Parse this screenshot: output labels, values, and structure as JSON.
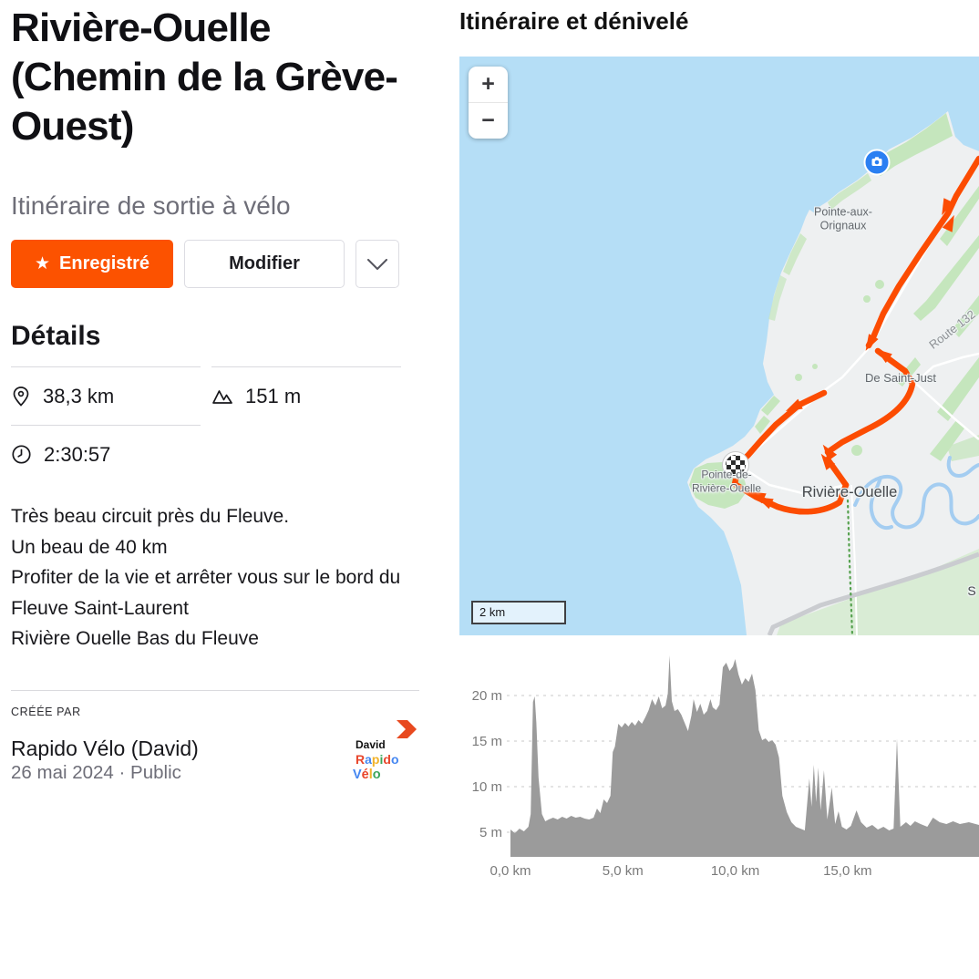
{
  "left": {
    "title": "Rivière-Ouelle (Chemin de la Grève-Ouest)",
    "subtitle": "Itinéraire de sortie à vélo",
    "buttons": {
      "saved": "Enregistré",
      "star": "★",
      "edit": "Modifier"
    },
    "details": {
      "heading": "Détails",
      "distance": "38,3 km",
      "elevation_gain": "151 m",
      "time": "2:30:57"
    },
    "description": [
      "Très beau circuit près du Fleuve.",
      "Un beau de 40 km",
      "Profiter de la vie et arrêter vous sur le bord du Fleuve Saint-Laurent",
      "Rivière Ouelle Bas du Fleuve"
    ],
    "created_by": {
      "label": "CRÉÉE PAR",
      "name": "Rapido Vélo (David)",
      "meta": "26 mai 2024 · Public",
      "avatar": {
        "line1": "David",
        "line2": [
          [
            "R",
            "#e8462c"
          ],
          [
            "a",
            "#4587f1"
          ],
          [
            "p",
            "#f2b32a"
          ],
          [
            "i",
            "#3ba55a"
          ],
          [
            "d",
            "#e8462c"
          ],
          [
            "o",
            "#4587f1"
          ]
        ],
        "line3": [
          [
            "V",
            "#4587f1"
          ],
          [
            "é",
            "#e8462c"
          ],
          [
            "l",
            "#f2b32a"
          ],
          [
            "o",
            "#3ba55a"
          ]
        ]
      }
    }
  },
  "right": {
    "heading": "Itinéraire et dénivelé",
    "map": {
      "zoom_in": "+",
      "zoom_out": "−",
      "scale": "2 km",
      "labels": {
        "pointe_aux_orignaux": "Pointe-aux-\nOrignaux",
        "de_saint_just": "De Saint-Just",
        "route_132": "Route 132",
        "riviere_ouelle": "Rivière-Ouelle",
        "pointe_de_riviere_ouelle": "Pointe-de-\nRivière-Ouelle",
        "partial_label": "S"
      }
    }
  },
  "chart_data": {
    "type": "area",
    "title": "",
    "xlabel": "",
    "ylabel": "",
    "x_unit": "km",
    "y_unit": "m",
    "xlim": [
      0,
      20.85
    ],
    "ylim": [
      2.3,
      27
    ],
    "x_ticks": [
      0,
      5,
      10,
      15
    ],
    "x_tick_labels": [
      "0,0 km",
      "5,0 km",
      "10,0 km",
      "15,0 km"
    ],
    "y_ticks": [
      5,
      10,
      15,
      20
    ],
    "y_tick_labels": [
      "5 m",
      "10 m",
      "15 m",
      "20 m"
    ],
    "grid": "dashed-horizontal",
    "fill_color": "#9b9b9b",
    "points": [
      [
        0,
        5.3
      ],
      [
        0.2,
        4.9
      ],
      [
        0.4,
        5.4
      ],
      [
        0.6,
        5.1
      ],
      [
        0.8,
        5.6
      ],
      [
        0.9,
        7.0
      ],
      [
        1.0,
        19.3
      ],
      [
        1.08,
        19.9
      ],
      [
        1.15,
        17.0
      ],
      [
        1.25,
        11.0
      ],
      [
        1.4,
        7.0
      ],
      [
        1.55,
        6.2
      ],
      [
        1.7,
        6.4
      ],
      [
        1.9,
        6.6
      ],
      [
        2.1,
        6.4
      ],
      [
        2.3,
        6.7
      ],
      [
        2.5,
        6.5
      ],
      [
        2.7,
        6.8
      ],
      [
        2.9,
        6.6
      ],
      [
        3.1,
        6.7
      ],
      [
        3.3,
        6.5
      ],
      [
        3.5,
        6.4
      ],
      [
        3.7,
        6.6
      ],
      [
        3.85,
        7.6
      ],
      [
        4.0,
        7.1
      ],
      [
        4.15,
        8.6
      ],
      [
        4.3,
        8.2
      ],
      [
        4.45,
        9.0
      ],
      [
        4.55,
        13.8
      ],
      [
        4.65,
        14.4
      ],
      [
        4.8,
        16.9
      ],
      [
        4.95,
        16.5
      ],
      [
        5.1,
        17.0
      ],
      [
        5.25,
        16.6
      ],
      [
        5.4,
        17.1
      ],
      [
        5.55,
        16.7
      ],
      [
        5.7,
        17.3
      ],
      [
        5.85,
        16.9
      ],
      [
        6.0,
        17.6
      ],
      [
        6.15,
        18.4
      ],
      [
        6.3,
        19.6
      ],
      [
        6.45,
        18.9
      ],
      [
        6.6,
        19.9
      ],
      [
        6.75,
        18.6
      ],
      [
        6.9,
        18.9
      ],
      [
        7.0,
        20.2
      ],
      [
        7.08,
        24.4
      ],
      [
        7.18,
        19.4
      ],
      [
        7.3,
        18.3
      ],
      [
        7.45,
        18.5
      ],
      [
        7.6,
        17.9
      ],
      [
        7.75,
        17.0
      ],
      [
        7.9,
        16.1
      ],
      [
        8.05,
        17.8
      ],
      [
        8.15,
        19.6
      ],
      [
        8.3,
        18.2
      ],
      [
        8.45,
        19.1
      ],
      [
        8.6,
        17.9
      ],
      [
        8.75,
        18.3
      ],
      [
        8.9,
        19.6
      ],
      [
        9.0,
        18.7
      ],
      [
        9.15,
        18.4
      ],
      [
        9.3,
        19.0
      ],
      [
        9.45,
        23.1
      ],
      [
        9.6,
        23.6
      ],
      [
        9.75,
        22.7
      ],
      [
        9.9,
        23.2
      ],
      [
        10.0,
        24.0
      ],
      [
        10.15,
        22.3
      ],
      [
        10.3,
        21.2
      ],
      [
        10.45,
        21.9
      ],
      [
        10.6,
        21.5
      ],
      [
        10.75,
        22.4
      ],
      [
        10.9,
        20.6
      ],
      [
        11.05,
        16.2
      ],
      [
        11.2,
        15.1
      ],
      [
        11.35,
        15.3
      ],
      [
        11.5,
        14.9
      ],
      [
        11.65,
        15.1
      ],
      [
        11.8,
        14.6
      ],
      [
        11.95,
        13.2
      ],
      [
        12.1,
        9.0
      ],
      [
        12.3,
        7.2
      ],
      [
        12.5,
        6.1
      ],
      [
        12.7,
        5.6
      ],
      [
        12.9,
        5.4
      ],
      [
        13.1,
        5.2
      ],
      [
        13.3,
        10.9
      ],
      [
        13.4,
        7.8
      ],
      [
        13.5,
        12.4
      ],
      [
        13.6,
        8.3
      ],
      [
        13.7,
        12.1
      ],
      [
        13.8,
        7.4
      ],
      [
        13.95,
        11.8
      ],
      [
        14.1,
        6.4
      ],
      [
        14.3,
        9.9
      ],
      [
        14.45,
        5.9
      ],
      [
        14.6,
        7.3
      ],
      [
        14.75,
        5.6
      ],
      [
        14.95,
        5.3
      ],
      [
        15.15,
        5.7
      ],
      [
        15.4,
        7.4
      ],
      [
        15.6,
        6.1
      ],
      [
        15.85,
        5.5
      ],
      [
        16.1,
        5.8
      ],
      [
        16.35,
        5.3
      ],
      [
        16.6,
        5.6
      ],
      [
        16.85,
        5.2
      ],
      [
        17.05,
        5.4
      ],
      [
        17.2,
        15.3
      ],
      [
        17.35,
        5.6
      ],
      [
        17.6,
        6.1
      ],
      [
        17.8,
        5.7
      ],
      [
        18.0,
        6.2
      ],
      [
        18.25,
        5.9
      ],
      [
        18.55,
        5.6
      ],
      [
        18.8,
        6.6
      ],
      [
        19.1,
        6.1
      ],
      [
        19.4,
        5.9
      ],
      [
        19.7,
        6.2
      ],
      [
        20.0,
        5.9
      ],
      [
        20.4,
        6.1
      ],
      [
        20.85,
        5.8
      ]
    ]
  },
  "colors": {
    "accent_orange": "#fc5200",
    "water": "#b5def6",
    "land": "#eef0f1",
    "vegetation": "#c5e6bd",
    "vegetation_pale": "#d9ecd5",
    "chart_fill": "#9b9b9b",
    "marker_blue": "#2b7ff2"
  }
}
